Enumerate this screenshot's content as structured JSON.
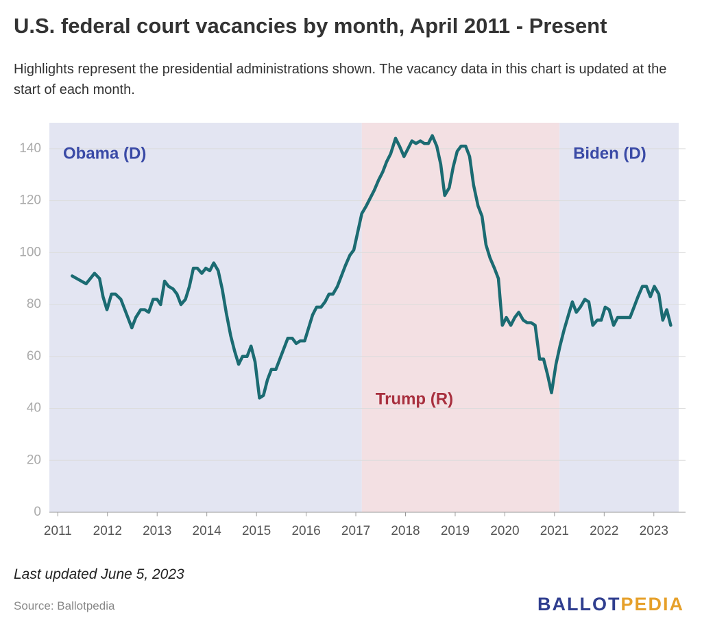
{
  "chart_data": {
    "type": "line",
    "title": "U.S. federal court vacancies by month, April 2011 - Present",
    "subtitle": "Highlights represent the presidential administrations shown. The vacancy data in this chart is updated at the start of each month.",
    "note": "Last updated June 5, 2023",
    "source": "Source: Ballotpedia",
    "logo": [
      "BALLOT",
      "PEDIA"
    ],
    "color": "#1b6b72",
    "xlim": [
      2010.83,
      2023.5
    ],
    "xticks": [
      2011,
      2012,
      2013,
      2014,
      2015,
      2016,
      2017,
      2018,
      2019,
      2020,
      2021,
      2022,
      2023
    ],
    "ylim": [
      0,
      150
    ],
    "yticks": [
      0,
      20,
      40,
      60,
      80,
      100,
      120,
      140
    ],
    "grid": true,
    "bands": [
      {
        "label": "Obama (D)",
        "start": 2010.83,
        "end": 2017.12,
        "color": "#e3e5f2",
        "label_color": "#3a4aa6"
      },
      {
        "label": "Trump (R)",
        "start": 2017.12,
        "end": 2021.1,
        "color": "#f3e0e3",
        "label_color": "#a8303f"
      },
      {
        "label": "Biden (D)",
        "start": 2021.1,
        "end": 2023.5,
        "color": "#e3e5f2",
        "label_color": "#3a4aa6"
      }
    ],
    "x": [
      2011.29,
      2011.57,
      2011.74,
      2011.84,
      2011.91,
      2011.99,
      2012.08,
      2012.16,
      2012.27,
      2012.37,
      2012.49,
      2012.57,
      2012.67,
      2012.75,
      2012.83,
      2012.92,
      2013.0,
      2013.07,
      2013.15,
      2013.23,
      2013.32,
      2013.4,
      2013.48,
      2013.57,
      2013.65,
      2013.73,
      2013.81,
      2013.9,
      2013.98,
      2014.06,
      2014.14,
      2014.23,
      2014.31,
      2014.39,
      2014.48,
      2014.56,
      2014.64,
      2014.72,
      2014.81,
      2014.89,
      2014.97,
      2015.06,
      2015.14,
      2015.22,
      2015.3,
      2015.39,
      2015.47,
      2015.55,
      2015.63,
      2015.72,
      2015.8,
      2015.88,
      2015.97,
      2016.05,
      2016.13,
      2016.21,
      2016.3,
      2016.38,
      2016.46,
      2016.54,
      2016.63,
      2016.71,
      2016.79,
      2016.88,
      2016.96,
      2017.04,
      2017.12,
      2017.21,
      2017.29,
      2017.37,
      2017.46,
      2017.54,
      2017.62,
      2017.7,
      2017.8,
      2017.88,
      2017.97,
      2018.05,
      2018.13,
      2018.21,
      2018.3,
      2018.38,
      2018.46,
      2018.54,
      2018.63,
      2018.71,
      2018.79,
      2018.88,
      2018.96,
      2019.04,
      2019.12,
      2019.21,
      2019.29,
      2019.37,
      2019.46,
      2019.54,
      2019.62,
      2019.7,
      2019.79,
      2019.87,
      2019.95,
      2020.03,
      2020.12,
      2020.2,
      2020.28,
      2020.37,
      2020.45,
      2020.53,
      2020.61,
      2020.7,
      2020.78,
      2020.86,
      2020.94,
      2021.03,
      2021.11,
      2021.19,
      2021.28,
      2021.36,
      2021.44,
      2021.52,
      2021.61,
      2021.69,
      2021.77,
      2021.86,
      2021.94,
      2022.02,
      2022.1,
      2022.19,
      2022.27,
      2022.35,
      2022.43,
      2022.52,
      2022.6,
      2022.68,
      2022.77,
      2022.85,
      2022.93,
      2023.01,
      2023.1,
      2023.18,
      2023.26,
      2023.34
    ],
    "values": [
      91,
      88,
      92,
      90,
      83,
      78,
      84,
      84,
      82,
      77,
      71,
      75,
      78,
      78,
      77,
      82,
      82,
      80,
      89,
      87,
      86,
      84,
      80,
      82,
      87,
      94,
      94,
      92,
      94,
      93,
      96,
      93,
      86,
      77,
      68,
      62,
      57,
      60,
      60,
      64,
      58,
      44,
      45,
      51,
      55,
      55,
      59,
      63,
      67,
      67,
      65,
      66,
      66,
      71,
      76,
      79,
      79,
      81,
      84,
      84,
      87,
      91,
      95,
      99,
      101,
      108,
      115,
      118,
      121,
      124,
      128,
      131,
      135,
      138,
      144,
      141,
      137,
      140,
      143,
      142,
      143,
      142,
      142,
      145,
      141,
      134,
      122,
      125,
      133,
      139,
      141,
      141,
      137,
      126,
      118,
      114,
      103,
      98,
      94,
      90,
      72,
      75,
      72,
      75,
      77,
      74,
      73,
      73,
      72,
      59,
      59,
      53,
      46,
      57,
      64,
      70,
      76,
      81,
      77,
      79,
      82,
      81,
      72,
      74,
      74,
      79,
      78,
      72,
      75,
      75,
      75,
      75,
      79,
      83,
      87,
      87,
      83,
      87,
      84,
      74,
      78,
      72
    ]
  }
}
